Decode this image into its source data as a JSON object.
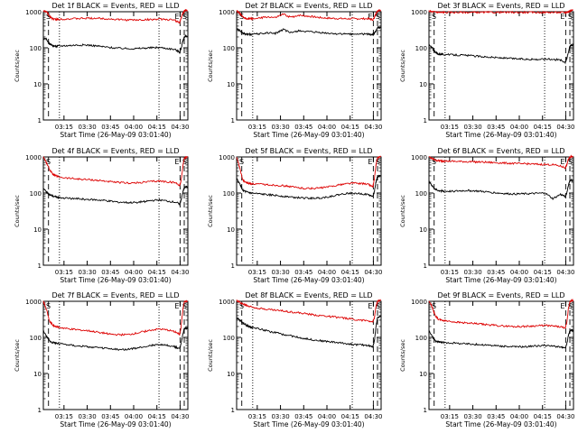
{
  "figure": {
    "colors": {
      "events": "#000000",
      "lld": "#dd0000",
      "axes": "#000000",
      "markers": "#000000"
    },
    "common": {
      "ylabel": "Counts/sec",
      "xlabel": "Start Time (26-May-09 03:01:40)",
      "x_ticks": [
        "03:15",
        "03:30",
        "03:45",
        "04:00",
        "04:15",
        "04:30"
      ],
      "x_tick_minutes": [
        13.33,
        28.33,
        43.33,
        58.33,
        73.33,
        88.33
      ],
      "x_range_minutes": [
        0,
        93.33
      ],
      "y_ticks": [
        "1",
        "10",
        "100",
        "1000"
      ],
      "y_tick_values": [
        1,
        10,
        100,
        1000
      ],
      "yscale": "log",
      "y_range": [
        1,
        1000
      ],
      "corner_labels": {
        "left": "S",
        "right_inner": "E",
        "right_outer": "S"
      },
      "dashed_lines_minutes": [
        3.33,
        88.3,
        91.0
      ],
      "dotted_lines_minutes": [
        10.4,
        74.7
      ]
    }
  },
  "chart_data": [
    {
      "type": "line",
      "title": "Det 1f BLACK = Events, RED = LLD",
      "x_minutes": [
        0,
        2,
        4,
        6,
        8,
        10,
        15,
        20,
        25,
        30,
        35,
        40,
        45,
        50,
        55,
        60,
        65,
        70,
        75,
        80,
        85,
        88,
        89,
        90,
        91,
        92,
        93
      ],
      "series": [
        {
          "name": "RED = LLD",
          "values": [
            1050,
            1000,
            760,
            640,
            610,
            620,
            630,
            640,
            650,
            660,
            660,
            640,
            620,
            600,
            590,
            590,
            600,
            610,
            620,
            610,
            580,
            500,
            650,
            900,
            1050,
            1100,
            1100
          ]
        },
        {
          "name": "BLACK = Events",
          "values": [
            180,
            170,
            130,
            115,
            110,
            112,
            115,
            118,
            120,
            118,
            112,
            105,
            100,
            97,
            95,
            95,
            98,
            100,
            102,
            96,
            90,
            75,
            95,
            150,
            200,
            210,
            210
          ]
        }
      ]
    },
    {
      "type": "line",
      "title": "Det 2f BLACK = Events, RED = LLD",
      "x_minutes": [
        0,
        2,
        4,
        6,
        8,
        10,
        15,
        20,
        25,
        30,
        35,
        40,
        45,
        50,
        55,
        60,
        65,
        70,
        75,
        80,
        85,
        88,
        89,
        90,
        91,
        92,
        93
      ],
      "series": [
        {
          "name": "RED = LLD",
          "values": [
            1050,
            900,
            700,
            650,
            640,
            640,
            660,
            720,
            680,
            850,
            700,
            800,
            760,
            720,
            680,
            660,
            650,
            640,
            640,
            640,
            640,
            600,
            700,
            900,
            1050,
            1100,
            1100
          ]
        },
        {
          "name": "BLACK = Events",
          "values": [
            350,
            300,
            250,
            240,
            235,
            240,
            245,
            260,
            250,
            320,
            260,
            300,
            280,
            270,
            260,
            250,
            245,
            240,
            240,
            240,
            240,
            230,
            250,
            300,
            350,
            360,
            360
          ]
        }
      ]
    },
    {
      "type": "line",
      "title": "Det 3f BLACK = Events, RED = LLD",
      "x_minutes": [
        0,
        2,
        4,
        6,
        8,
        10,
        15,
        20,
        25,
        30,
        35,
        40,
        45,
        50,
        55,
        60,
        65,
        70,
        75,
        80,
        85,
        88,
        89,
        90,
        91,
        92,
        93
      ],
      "series": [
        {
          "name": "RED = LLD",
          "values": [
            1050,
            1000,
            980,
            970,
            960,
            960,
            960,
            960,
            960,
            960,
            960,
            960,
            960,
            960,
            960,
            960,
            960,
            960,
            960,
            960,
            960,
            960,
            980,
            1000,
            1050,
            1100,
            1100
          ]
        },
        {
          "name": "BLACK = Events",
          "values": [
            120,
            100,
            75,
            68,
            66,
            65,
            64,
            63,
            61,
            59,
            57,
            55,
            53,
            51,
            50,
            49,
            48,
            48,
            49,
            48,
            46,
            40,
            50,
            75,
            110,
            120,
            120
          ]
        }
      ]
    },
    {
      "type": "line",
      "title": "Det 4f BLACK = Events, RED = LLD",
      "x_minutes": [
        0,
        2,
        4,
        6,
        8,
        10,
        15,
        20,
        25,
        30,
        35,
        40,
        45,
        50,
        55,
        60,
        65,
        70,
        75,
        80,
        85,
        88,
        89,
        90,
        91,
        92,
        93
      ],
      "series": [
        {
          "name": "RED = LLD",
          "values": [
            1000,
            700,
            450,
            340,
            300,
            280,
            260,
            250,
            240,
            235,
            225,
            215,
            200,
            195,
            190,
            190,
            200,
            210,
            215,
            205,
            195,
            165,
            220,
            500,
            900,
            1000,
            1000
          ]
        },
        {
          "name": "BLACK = Events",
          "values": [
            130,
            110,
            90,
            82,
            78,
            75,
            72,
            70,
            68,
            66,
            64,
            62,
            58,
            56,
            54,
            55,
            58,
            62,
            64,
            60,
            56,
            50,
            65,
            100,
            140,
            150,
            150
          ]
        }
      ]
    },
    {
      "type": "line",
      "title": "Det 5f BLACK = Events, RED = LLD",
      "x_minutes": [
        0,
        2,
        4,
        6,
        8,
        10,
        15,
        20,
        25,
        30,
        35,
        40,
        45,
        50,
        55,
        60,
        65,
        70,
        75,
        80,
        85,
        88,
        89,
        90,
        91,
        92,
        93
      ],
      "series": [
        {
          "name": "RED = LLD",
          "values": [
            1000,
            500,
            230,
            195,
            185,
            180,
            175,
            170,
            165,
            160,
            150,
            140,
            135,
            135,
            140,
            150,
            165,
            180,
            190,
            185,
            175,
            150,
            240,
            600,
            950,
            1000,
            1000
          ]
        },
        {
          "name": "BLACK = Events",
          "values": [
            250,
            180,
            120,
            108,
            102,
            98,
            94,
            90,
            86,
            82,
            78,
            74,
            72,
            72,
            74,
            80,
            88,
            96,
            100,
            96,
            90,
            80,
            110,
            200,
            280,
            300,
            300
          ]
        }
      ]
    },
    {
      "type": "line",
      "title": "Det 6f BLACK = Events, RED = LLD",
      "x_minutes": [
        0,
        2,
        4,
        6,
        8,
        10,
        15,
        20,
        25,
        30,
        35,
        40,
        45,
        50,
        55,
        60,
        65,
        70,
        75,
        80,
        85,
        88,
        89,
        90,
        91,
        92,
        93
      ],
      "series": [
        {
          "name": "RED = LLD",
          "values": [
            1000,
            900,
            820,
            790,
            780,
            770,
            760,
            750,
            740,
            730,
            720,
            705,
            690,
            675,
            660,
            650,
            640,
            630,
            620,
            610,
            560,
            500,
            600,
            850,
            1000,
            1050,
            1050
          ]
        },
        {
          "name": "BLACK = Events",
          "values": [
            220,
            160,
            125,
            118,
            115,
            112,
            112,
            115,
            118,
            115,
            110,
            105,
            100,
            96,
            94,
            95,
            96,
            98,
            100,
            70,
            92,
            80,
            100,
            160,
            220,
            230,
            230
          ]
        }
      ]
    },
    {
      "type": "line",
      "title": "Det 7f BLACK = Events, RED = LLD",
      "x_minutes": [
        0,
        2,
        4,
        6,
        8,
        10,
        15,
        20,
        25,
        30,
        35,
        40,
        45,
        50,
        55,
        60,
        65,
        70,
        75,
        80,
        85,
        88,
        89,
        90,
        91,
        92,
        93
      ],
      "series": [
        {
          "name": "RED = LLD",
          "values": [
            1000,
            600,
            280,
            220,
            200,
            190,
            175,
            165,
            160,
            150,
            140,
            130,
            120,
            118,
            120,
            130,
            145,
            160,
            170,
            160,
            145,
            120,
            200,
            550,
            950,
            1000,
            1000
          ]
        },
        {
          "name": "BLACK = Events",
          "values": [
            150,
            110,
            80,
            72,
            70,
            68,
            64,
            60,
            57,
            54,
            52,
            50,
            47,
            46,
            47,
            50,
            55,
            60,
            64,
            60,
            55,
            48,
            70,
            120,
            170,
            180,
            180
          ]
        }
      ]
    },
    {
      "type": "line",
      "title": "Det 8f BLACK = Events, RED = LLD",
      "x_minutes": [
        0,
        2,
        4,
        6,
        8,
        10,
        15,
        20,
        25,
        30,
        35,
        40,
        45,
        50,
        55,
        60,
        65,
        70,
        75,
        80,
        85,
        88,
        89,
        90,
        91,
        92,
        93
      ],
      "series": [
        {
          "name": "RED = LLD",
          "values": [
            1050,
            950,
            850,
            780,
            730,
            700,
            640,
            600,
            570,
            540,
            510,
            480,
            450,
            420,
            400,
            380,
            360,
            340,
            320,
            300,
            290,
            270,
            350,
            700,
            1000,
            1050,
            1050
          ]
        },
        {
          "name": "BLACK = Events",
          "values": [
            350,
            300,
            250,
            220,
            200,
            190,
            170,
            150,
            135,
            120,
            110,
            100,
            92,
            85,
            80,
            76,
            72,
            68,
            64,
            62,
            60,
            55,
            80,
            200,
            350,
            370,
            370
          ]
        }
      ]
    },
    {
      "type": "line",
      "title": "Det 9f BLACK = Events, RED = LLD",
      "x_minutes": [
        0,
        2,
        4,
        6,
        8,
        10,
        15,
        20,
        25,
        30,
        35,
        40,
        45,
        50,
        55,
        60,
        65,
        70,
        75,
        80,
        85,
        88,
        89,
        90,
        91,
        92,
        93
      ],
      "series": [
        {
          "name": "RED = LLD",
          "values": [
            1050,
            700,
            400,
            320,
            300,
            290,
            275,
            260,
            250,
            240,
            230,
            220,
            212,
            205,
            200,
            200,
            205,
            210,
            215,
            205,
            195,
            180,
            250,
            600,
            950,
            1050,
            1050
          ]
        },
        {
          "name": "BLACK = Events",
          "values": [
            150,
            110,
            80,
            75,
            73,
            72,
            70,
            68,
            66,
            64,
            62,
            60,
            58,
            56,
            55,
            55,
            56,
            58,
            60,
            57,
            54,
            50,
            65,
            110,
            150,
            160,
            160
          ]
        }
      ]
    }
  ]
}
